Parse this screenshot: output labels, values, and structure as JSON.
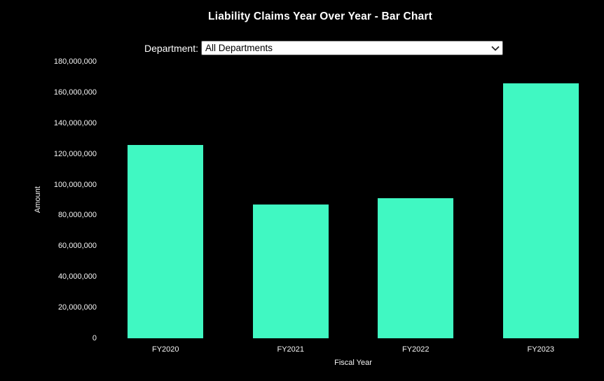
{
  "controls": {
    "department_label": "Department:",
    "department_selected": "All Departments"
  },
  "icons": {
    "select_chevron": "chevron-down-icon"
  },
  "chart_data": {
    "type": "bar",
    "title": "Liability Claims Year Over Year - Bar Chart",
    "categories": [
      "FY2020",
      "FY2021",
      "FY2022",
      "FY2023"
    ],
    "values": [
      126000000,
      87000000,
      91000000,
      166000000
    ],
    "xlabel": "Fiscal Year",
    "ylabel": "Amount",
    "ylim": [
      0,
      180000000
    ],
    "ytick_step": 20000000,
    "ytick_labels": [
      "0",
      "20,000,000",
      "40,000,000",
      "60,000,000",
      "80,000,000",
      "100,000,000",
      "120,000,000",
      "140,000,000",
      "160,000,000",
      "180,000,000"
    ],
    "bar_color": "#40f8c2",
    "background_color": "#000000",
    "text_color": "#ffffff",
    "grid": false,
    "legend": false
  }
}
